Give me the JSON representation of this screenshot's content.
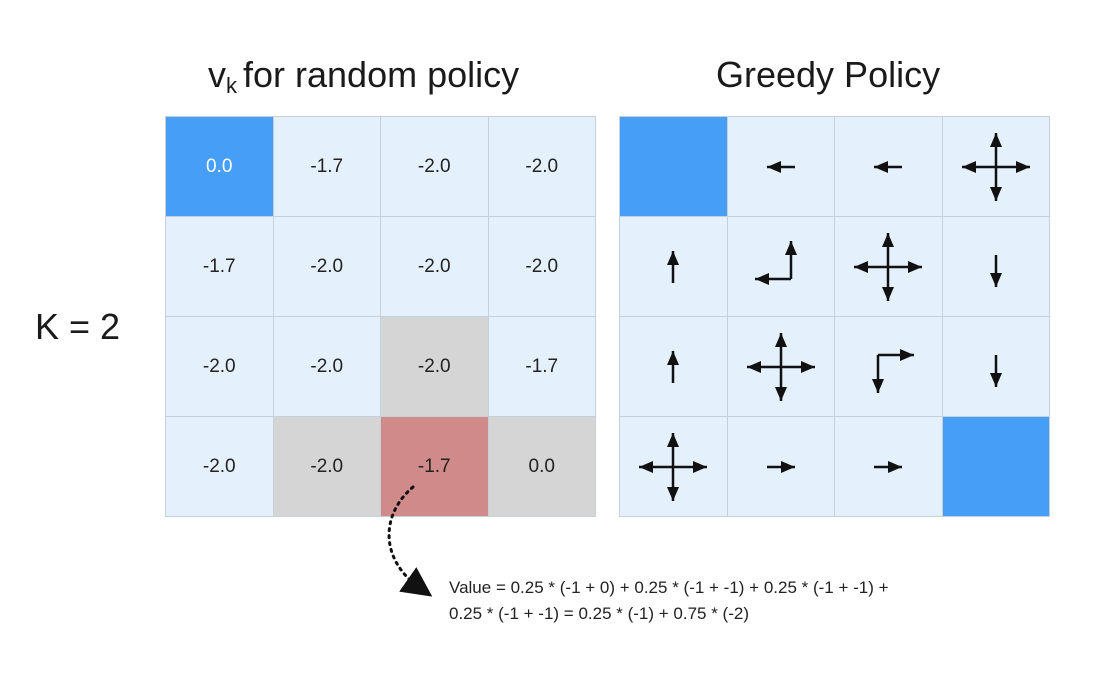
{
  "titles": {
    "left_prefix": "v",
    "left_sub": "k",
    "left_rest": "for random policy",
    "right": "Greedy Policy"
  },
  "k_label": "K = 2",
  "values_grid": [
    [
      {
        "v": "0.0",
        "style": "terminal"
      },
      {
        "v": "-1.7",
        "style": "normal"
      },
      {
        "v": "-2.0",
        "style": "normal"
      },
      {
        "v": "-2.0",
        "style": "normal"
      }
    ],
    [
      {
        "v": "-1.7",
        "style": "normal"
      },
      {
        "v": "-2.0",
        "style": "normal"
      },
      {
        "v": "-2.0",
        "style": "normal"
      },
      {
        "v": "-2.0",
        "style": "normal"
      }
    ],
    [
      {
        "v": "-2.0",
        "style": "normal"
      },
      {
        "v": "-2.0",
        "style": "normal"
      },
      {
        "v": "-2.0",
        "style": "gray"
      },
      {
        "v": "-1.7",
        "style": "normal"
      }
    ],
    [
      {
        "v": "-2.0",
        "style": "normal"
      },
      {
        "v": "-2.0",
        "style": "gray"
      },
      {
        "v": "-1.7",
        "style": "red"
      },
      {
        "v": "0.0",
        "style": "gray"
      }
    ]
  ],
  "policy_grid": [
    [
      [
        "terminal"
      ],
      [
        "left"
      ],
      [
        "left"
      ],
      [
        "up",
        "down",
        "left",
        "right"
      ]
    ],
    [
      [
        "up"
      ],
      [
        "up",
        "left"
      ],
      [
        "up",
        "down",
        "left",
        "right"
      ],
      [
        "down"
      ]
    ],
    [
      [
        "up"
      ],
      [
        "up",
        "down",
        "left",
        "right"
      ],
      [
        "down",
        "right"
      ],
      [
        "down"
      ]
    ],
    [
      [
        "up",
        "down",
        "left",
        "right"
      ],
      [
        "right"
      ],
      [
        "right"
      ],
      [
        "terminal"
      ]
    ]
  ],
  "formula": {
    "line1": "Value = 0.25 * (-1 + 0) + 0.25 * (-1 + -1) + 0.25 * (-1 + -1) +",
    "line2": "0.25 * (-1 + -1) = 0.25 * (-1) + 0.75 * (-2)"
  },
  "colors": {
    "cell": "#e4f0fb",
    "terminal": "#479ef6",
    "highlight_gray": "#d5d5d5",
    "highlight_red": "#d08a8a",
    "grid_line": "#c6d0da"
  }
}
